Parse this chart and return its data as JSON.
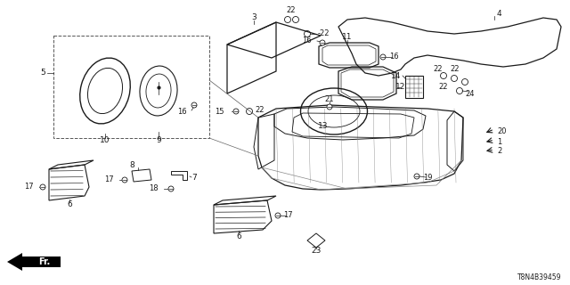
{
  "bg_color": "#ffffff",
  "line_color": "#1a1a1a",
  "text_color": "#1a1a1a",
  "diagram_code": "T8N4B39459",
  "fs": 6.5
}
